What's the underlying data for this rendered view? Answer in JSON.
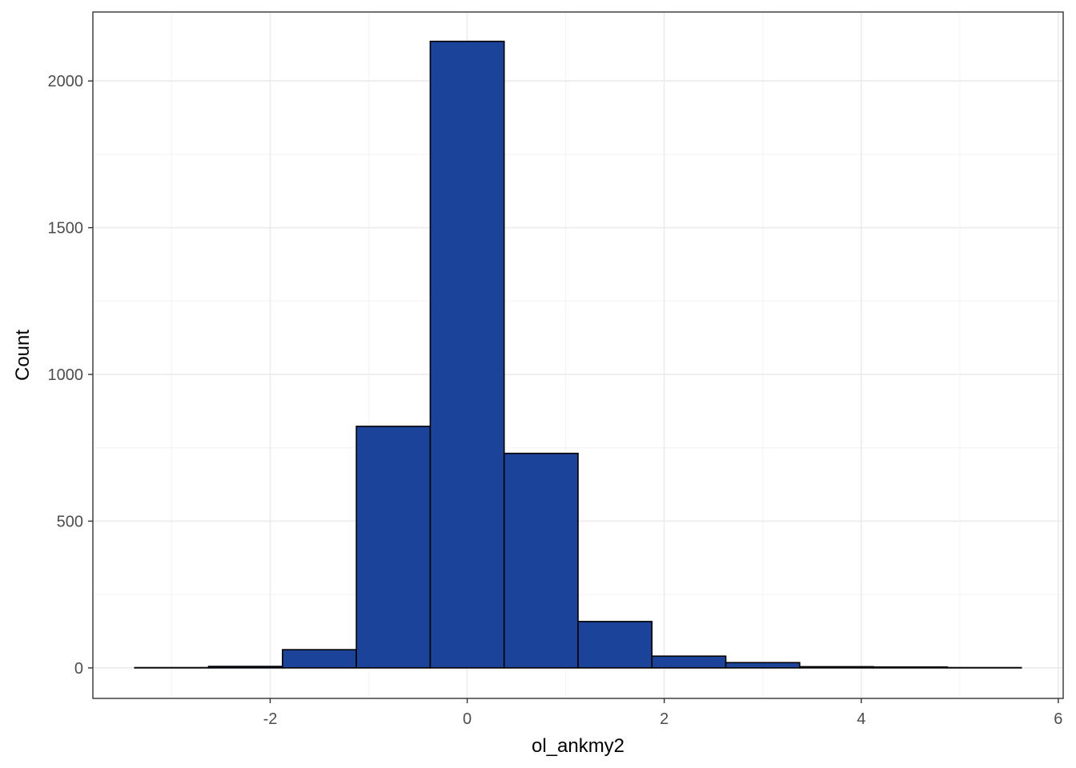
{
  "chart_data": {
    "type": "bar",
    "title": "",
    "xlabel": "ol_ankmy2",
    "ylabel": "Count",
    "bin_width": 0.75,
    "bins": [
      {
        "x0": -3.375,
        "x1": -2.625,
        "count": 1
      },
      {
        "x0": -2.625,
        "x1": -1.875,
        "count": 5
      },
      {
        "x0": -1.875,
        "x1": -1.125,
        "count": 62
      },
      {
        "x0": -1.125,
        "x1": -0.375,
        "count": 823
      },
      {
        "x0": -0.375,
        "x1": 0.375,
        "count": 2135
      },
      {
        "x0": 0.375,
        "x1": 1.125,
        "count": 731
      },
      {
        "x0": 1.125,
        "x1": 1.875,
        "count": 158
      },
      {
        "x0": 1.875,
        "x1": 2.625,
        "count": 40
      },
      {
        "x0": 2.625,
        "x1": 3.375,
        "count": 18
      },
      {
        "x0": 3.375,
        "x1": 4.125,
        "count": 4
      },
      {
        "x0": 4.125,
        "x1": 4.875,
        "count": 3
      },
      {
        "x0": 4.875,
        "x1": 5.625,
        "count": 1
      }
    ],
    "xlim": [
      -3.8,
      6.05
    ],
    "ylim": [
      -104,
      2235
    ],
    "x_major_ticks": [
      -2,
      0,
      2,
      4,
      6
    ],
    "x_minor_ticks": [
      -3,
      -1,
      1,
      3,
      5
    ],
    "y_major_ticks": [
      0,
      500,
      1000,
      1500,
      2000
    ],
    "y_minor_ticks": [
      250,
      750,
      1250,
      1750
    ],
    "x_tick_labels": [
      "-2",
      "0",
      "2",
      "4",
      "6"
    ],
    "y_tick_labels": [
      "0",
      "500",
      "1000",
      "1500",
      "2000"
    ],
    "grid": true,
    "legend": "none",
    "colors": {
      "bar_fill": "#1a4399",
      "bar_stroke": "#000000",
      "grid_major": "#ebebeb",
      "grid_minor": "#f5f5f5",
      "panel_border": "#333333",
      "tick_label": "#4d4d4d"
    }
  }
}
